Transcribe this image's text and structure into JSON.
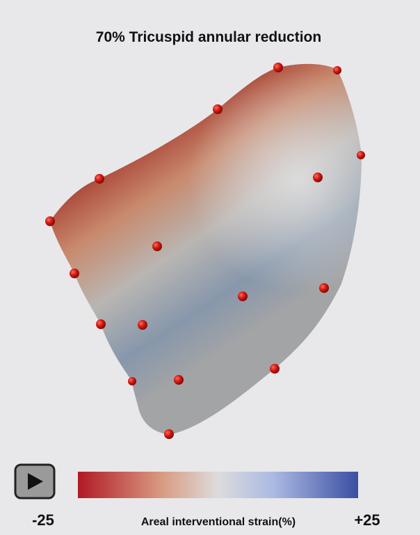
{
  "title": "70% Tricuspid annular reduction",
  "colorbar": {
    "min_label": "-25",
    "max_label": "+25",
    "title": "Areal interventional strain(%)"
  }
}
